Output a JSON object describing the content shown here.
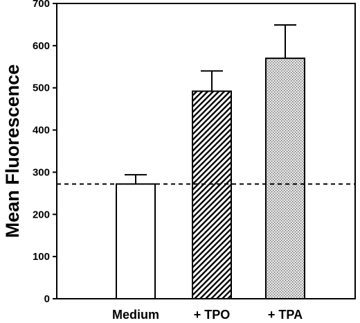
{
  "chart_data": {
    "type": "bar",
    "categories": [
      "Medium",
      "+ TPO",
      "+ TPA"
    ],
    "values": [
      272,
      492,
      570
    ],
    "error_upper": [
      294,
      540,
      649
    ],
    "fills": [
      "white",
      "diagonal-hatch",
      "dotted-stipple"
    ],
    "reference_line": 272,
    "ylabel": "Mean Fluorescence",
    "xlabel": "",
    "ylim": [
      0,
      700
    ],
    "yticks": [
      "0",
      "100",
      "200",
      "300",
      "400",
      "500",
      "600",
      "700"
    ],
    "grid": false,
    "legend": "none"
  }
}
